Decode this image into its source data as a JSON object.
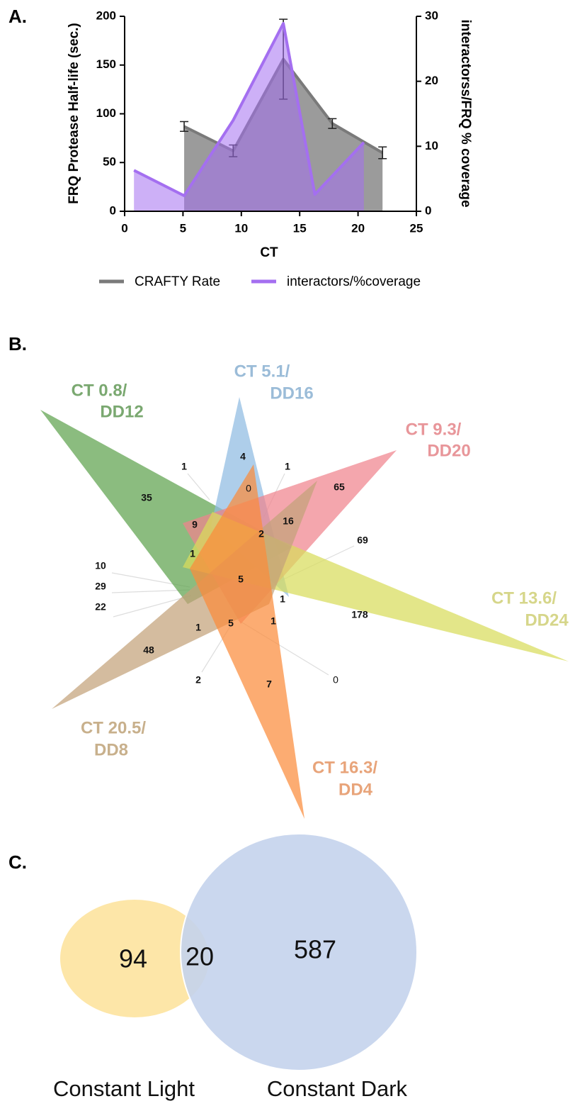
{
  "panel_labels": [
    "A.",
    "B.",
    "C."
  ],
  "chart_data": {
    "type": "area",
    "x_label": "CT",
    "y_label": "FRQ Protease Half-life (sec.)",
    "y2_label": "interactorss/FRQ % coverage",
    "xlim": [
      0,
      25
    ],
    "xticks": [
      0,
      5,
      10,
      15,
      20,
      25
    ],
    "ylim": [
      0,
      200
    ],
    "yticks": [
      0,
      50,
      100,
      150,
      200
    ],
    "y2lim": [
      0,
      30
    ],
    "y2ticks": [
      0,
      10,
      20,
      30
    ],
    "series": [
      {
        "name": "CRAFTY Rate",
        "color": "#7a7a7a",
        "x": [
          5.1,
          9.3,
          13.6,
          17.8,
          22.1
        ],
        "values": [
          87,
          62,
          156,
          90,
          60
        ],
        "errors": [
          5,
          6,
          41,
          5,
          6
        ]
      },
      {
        "name": "interactors/%coverage",
        "color": "#a46ff0",
        "axis": "y2",
        "x": [
          0.8,
          5.1,
          9.3,
          13.6,
          16.3,
          20.5
        ],
        "values": [
          6.3,
          2.4,
          14,
          28.9,
          2.6,
          10.6
        ]
      }
    ]
  },
  "venn5": {
    "sets": [
      {
        "label": [
          "CT 0.8/",
          "DD12"
        ],
        "color": "#5ea24e",
        "label_color": "#7aa870"
      },
      {
        "label": [
          "CT 5.1/",
          "DD16"
        ],
        "color": "#8fbbe2",
        "label_color": "#9bbcd8"
      },
      {
        "label": [
          "CT 9.3/",
          "DD20"
        ],
        "color": "#f0848e",
        "label_color": "#e8969a"
      },
      {
        "label": [
          "CT 13.6/",
          "DD24"
        ],
        "color": "#d8dc5c",
        "label_color": "#d6d68a"
      },
      {
        "label": [
          "CT 20.5/",
          "DD8"
        ],
        "color": "#c4a27a",
        "label_color": "#c8b08c"
      },
      {
        "label": [
          "CT 16.3/",
          "DD4"
        ],
        "color": "#fb8c3c",
        "label_color": "#e8a47a"
      }
    ],
    "counts": [
      35,
      4,
      0,
      65,
      178,
      48,
      7,
      1,
      1,
      9,
      16,
      2,
      1,
      5,
      1,
      1,
      5,
      1,
      2,
      0,
      69,
      10,
      29,
      22
    ]
  },
  "venn2": {
    "sets": [
      {
        "label": "Constant Light",
        "color": "#fde6a8"
      },
      {
        "label": "Constant Dark",
        "color": "#c4d3ec"
      }
    ],
    "counts": [
      94,
      20,
      587
    ]
  }
}
